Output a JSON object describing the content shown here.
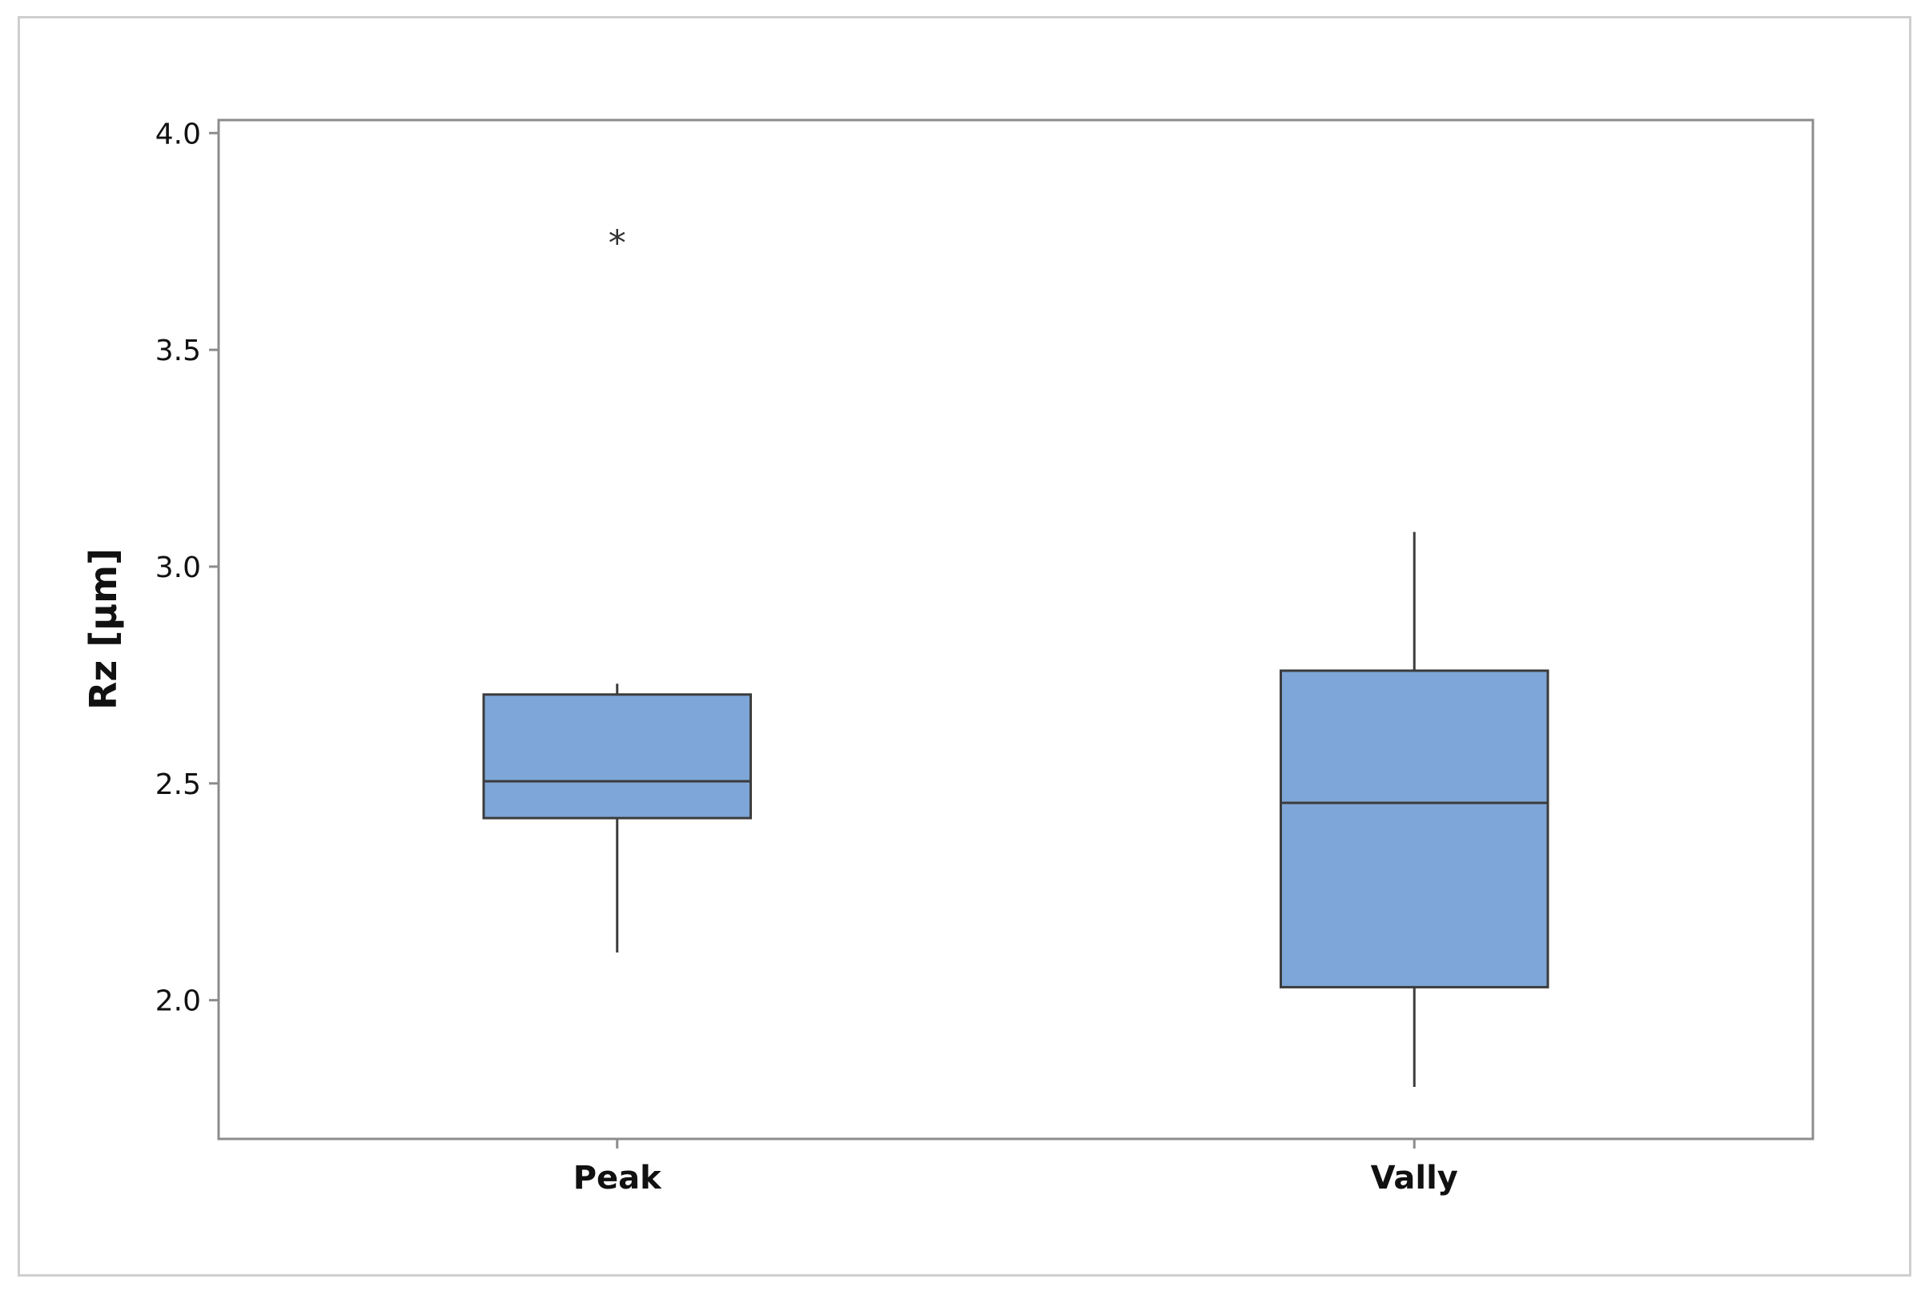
{
  "chart_data": {
    "type": "box",
    "title": "",
    "xlabel": "",
    "ylabel": "Rz [µm]",
    "ylim": [
      1.68,
      4.03
    ],
    "yticks": [
      {
        "value": 2.0,
        "label": "2.0"
      },
      {
        "value": 2.5,
        "label": "2.5"
      },
      {
        "value": 3.0,
        "label": "3.0"
      },
      {
        "value": 3.5,
        "label": "3.5"
      },
      {
        "value": 4.0,
        "label": "4.0"
      }
    ],
    "categories": [
      "Peak",
      "Vally"
    ],
    "boxes": [
      {
        "category": "Peak",
        "whisker_low": 2.11,
        "q1": 2.42,
        "median": 2.505,
        "q3": 2.705,
        "whisker_high": 2.73,
        "outliers": [
          3.76
        ]
      },
      {
        "category": "Vally",
        "whisker_low": 1.8,
        "q1": 2.03,
        "median": 2.455,
        "q3": 2.76,
        "whisker_high": 3.08,
        "outliers": []
      }
    ],
    "outlier_marker": "*",
    "box_fill": "#7ea6d8",
    "box_stroke": "#3c3c3c",
    "frame_color": "#8c8c8c",
    "grid": false,
    "legend": "none"
  }
}
